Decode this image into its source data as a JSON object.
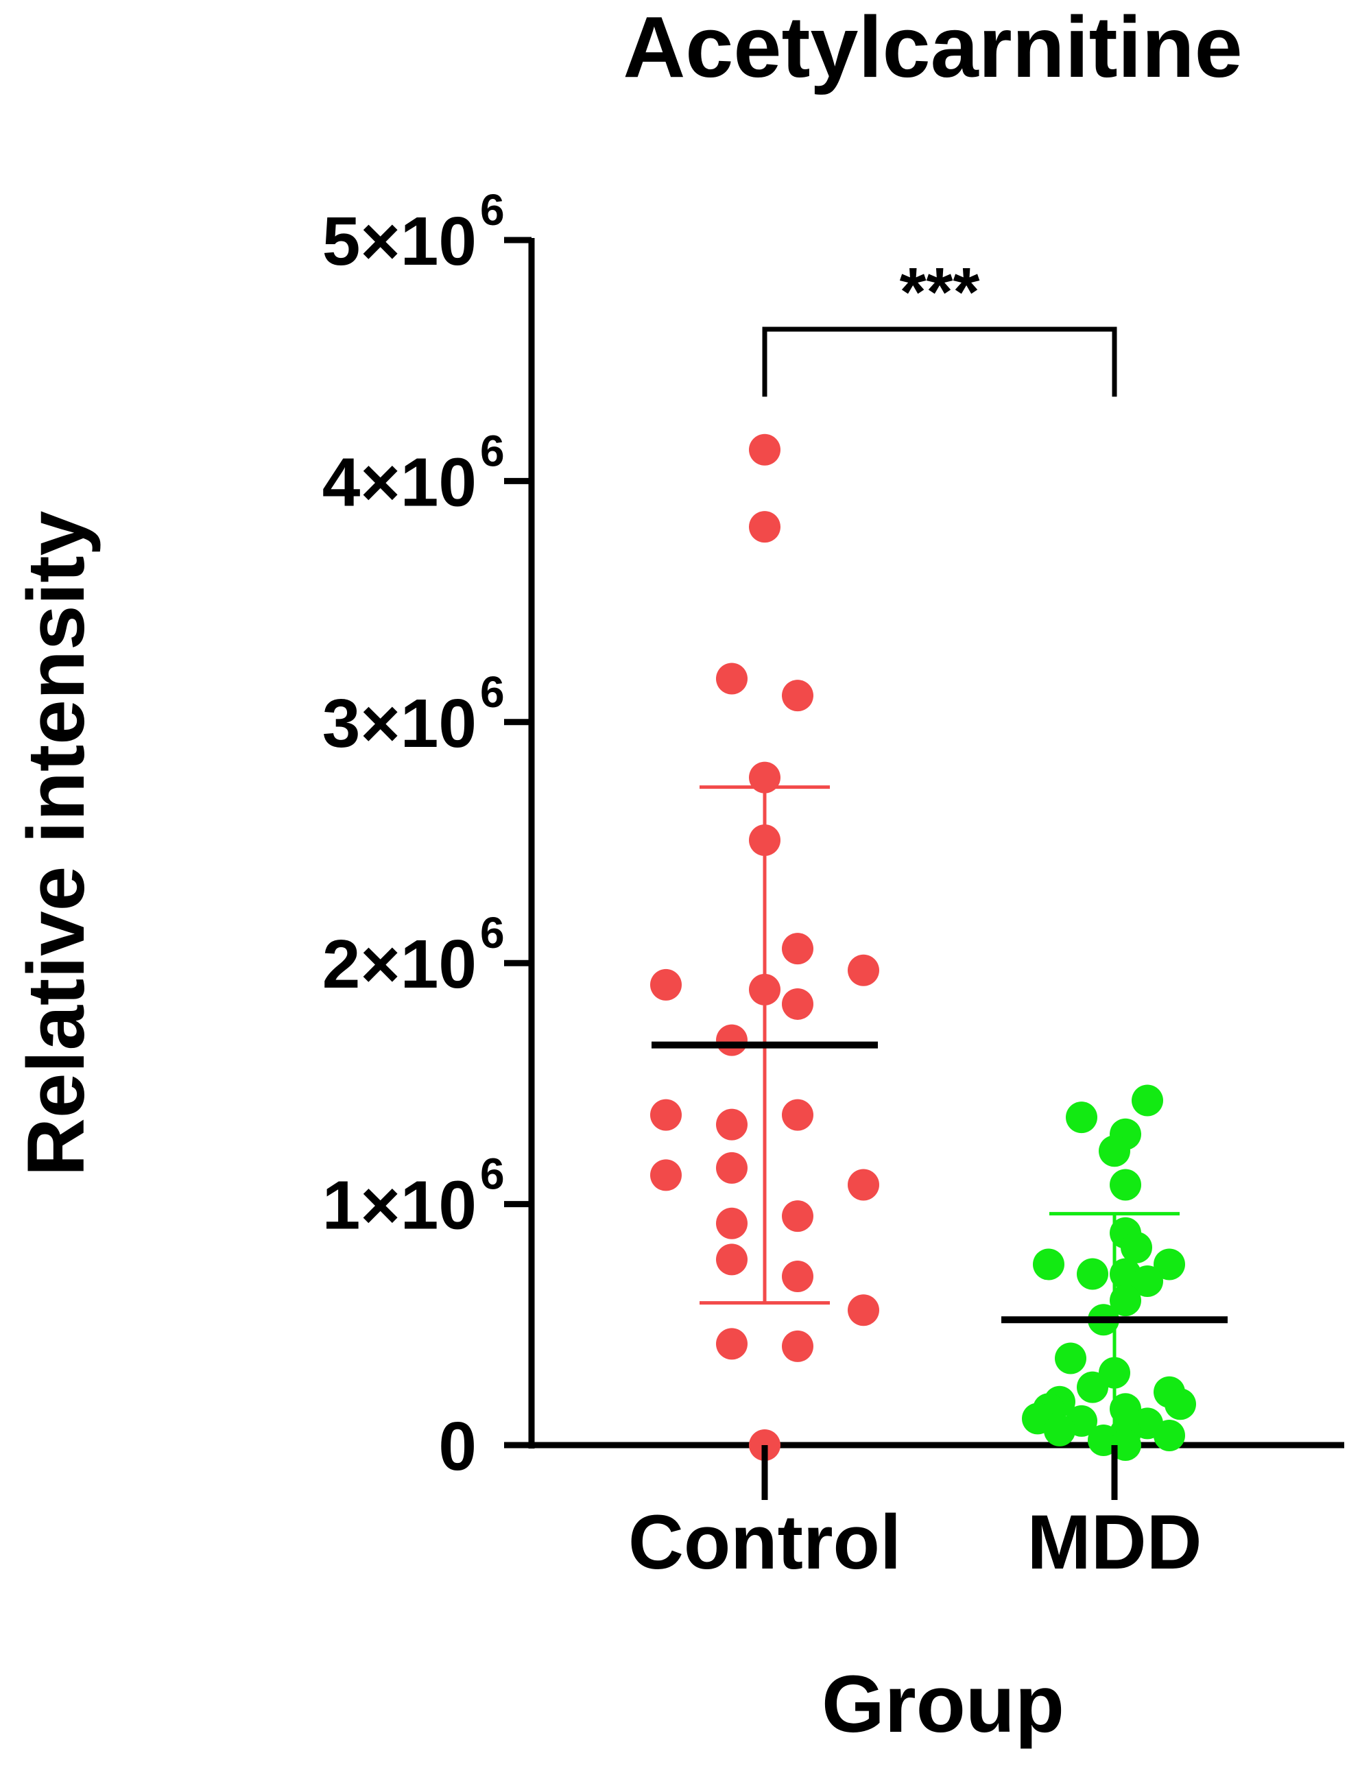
{
  "colors": {
    "control": "#F24A4A",
    "mdd": "#12EA12",
    "axis": "#000000",
    "mean_line": "#000000"
  },
  "chart_data": {
    "type": "scatter",
    "title": "Acetylcarnitine",
    "xlabel": "Group",
    "ylabel": "Relative intensity",
    "categories": [
      "Control",
      "MDD"
    ],
    "ylim": [
      0,
      5000000
    ],
    "y_ticks": [
      {
        "value": 0,
        "label_base": "0",
        "label_exp": ""
      },
      {
        "value": 1000000,
        "label_base": "1×10",
        "label_exp": "6"
      },
      {
        "value": 2000000,
        "label_base": "2×10",
        "label_exp": "6"
      },
      {
        "value": 3000000,
        "label_base": "3×10",
        "label_exp": "6"
      },
      {
        "value": 4000000,
        "label_base": "4×10",
        "label_exp": "6"
      },
      {
        "value": 5000000,
        "label_base": "5×10",
        "label_exp": "6"
      }
    ],
    "grid": false,
    "legend": "none",
    "series": [
      {
        "category": "Control",
        "mean": 1660000,
        "sd_upper": 2730000,
        "sd_lower": 590000,
        "points": [
          {
            "offset": 0.0,
            "y": 4130000
          },
          {
            "offset": 0.0,
            "y": 3810000
          },
          {
            "offset": -0.15,
            "y": 3180000
          },
          {
            "offset": 0.15,
            "y": 3110000
          },
          {
            "offset": 0.0,
            "y": 2770000
          },
          {
            "offset": 0.0,
            "y": 2510000
          },
          {
            "offset": 0.15,
            "y": 2060000
          },
          {
            "offset": 0.45,
            "y": 1970000
          },
          {
            "offset": -0.45,
            "y": 1910000
          },
          {
            "offset": 0.0,
            "y": 1890000
          },
          {
            "offset": 0.15,
            "y": 1830000
          },
          {
            "offset": -0.15,
            "y": 1680000
          },
          {
            "offset": -0.45,
            "y": 1370000
          },
          {
            "offset": 0.15,
            "y": 1370000
          },
          {
            "offset": -0.15,
            "y": 1330000
          },
          {
            "offset": -0.15,
            "y": 1150000
          },
          {
            "offset": -0.45,
            "y": 1120000
          },
          {
            "offset": 0.45,
            "y": 1080000
          },
          {
            "offset": 0.15,
            "y": 950000
          },
          {
            "offset": -0.15,
            "y": 920000
          },
          {
            "offset": -0.15,
            "y": 770000
          },
          {
            "offset": 0.15,
            "y": 700000
          },
          {
            "offset": 0.45,
            "y": 560000
          },
          {
            "offset": -0.15,
            "y": 420000
          },
          {
            "offset": 0.15,
            "y": 410000
          },
          {
            "offset": 0.0,
            "y": 0
          }
        ]
      },
      {
        "category": "MDD",
        "mean": 520000,
        "sd_upper": 960000,
        "sd_lower": 0,
        "points": [
          {
            "offset": 0.15,
            "y": 1430000
          },
          {
            "offset": -0.15,
            "y": 1360000
          },
          {
            "offset": 0.05,
            "y": 1290000
          },
          {
            "offset": 0.0,
            "y": 1220000
          },
          {
            "offset": 0.05,
            "y": 1080000
          },
          {
            "offset": 0.05,
            "y": 880000
          },
          {
            "offset": 0.1,
            "y": 820000
          },
          {
            "offset": -0.3,
            "y": 750000
          },
          {
            "offset": 0.25,
            "y": 750000
          },
          {
            "offset": -0.1,
            "y": 710000
          },
          {
            "offset": 0.05,
            "y": 710000
          },
          {
            "offset": 0.15,
            "y": 680000
          },
          {
            "offset": 0.05,
            "y": 600000
          },
          {
            "offset": -0.05,
            "y": 520000
          },
          {
            "offset": -0.2,
            "y": 360000
          },
          {
            "offset": 0.0,
            "y": 300000
          },
          {
            "offset": -0.1,
            "y": 240000
          },
          {
            "offset": 0.25,
            "y": 220000
          },
          {
            "offset": -0.25,
            "y": 180000
          },
          {
            "offset": 0.3,
            "y": 170000
          },
          {
            "offset": -0.3,
            "y": 150000
          },
          {
            "offset": 0.05,
            "y": 150000
          },
          {
            "offset": -0.35,
            "y": 110000
          },
          {
            "offset": -0.15,
            "y": 100000
          },
          {
            "offset": 0.15,
            "y": 90000
          },
          {
            "offset": -0.25,
            "y": 60000
          },
          {
            "offset": 0.05,
            "y": 50000
          },
          {
            "offset": 0.25,
            "y": 40000
          },
          {
            "offset": -0.05,
            "y": 20000
          },
          {
            "offset": 0.05,
            "y": 0
          }
        ]
      }
    ],
    "significance": {
      "between": [
        "Control",
        "MDD"
      ],
      "label": "***",
      "y": 4630000,
      "left_end_y": 4350000,
      "right_end_y": 4350000
    }
  }
}
